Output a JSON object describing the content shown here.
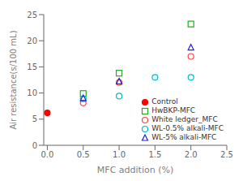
{
  "chart_data": {
    "type": "scatter",
    "xlabel": "MFC addition (%)",
    "ylabel": "Air resistance(s/100 mL)",
    "xlim": [
      -0.05,
      2.5
    ],
    "ylim": [
      0,
      25
    ],
    "xticks": [
      {
        "value": 0,
        "label": "0.0"
      },
      0.5,
      {
        "value": 1,
        "label": "1.0"
      },
      1.5,
      {
        "value": 2,
        "label": "2.0"
      },
      2.5
    ],
    "yticks": [
      0,
      5,
      10,
      15,
      20,
      25
    ],
    "grid": false,
    "legend": "lower right",
    "series": [
      {
        "name": "Control",
        "x": [
          0.0
        ],
        "values": [
          6.2
        ],
        "color": "#ff0000",
        "marker": "filled_circle"
      },
      {
        "name": "HwBKP-MFC",
        "x": [
          0.5,
          1.0,
          2.0
        ],
        "values": [
          9.9,
          13.8,
          23.2
        ],
        "color": "#22aa22",
        "marker": "open_square"
      },
      {
        "name": "White ledger_MFC",
        "x": [
          0.5,
          1.0,
          2.0
        ],
        "values": [
          8.1,
          12.0,
          17.0
        ],
        "color": "#ff4444",
        "marker": "open_circle"
      },
      {
        "name": "WL-0.5% alkali-MFC",
        "x": [
          0.5,
          1.0,
          1.5,
          2.0
        ],
        "values": [
          8.9,
          9.4,
          13.0,
          13.0
        ],
        "color": "#00bbcc",
        "marker": "open_circle"
      },
      {
        "name": "WL-5% alkali-MFC",
        "x": [
          0.5,
          1.0,
          2.0
        ],
        "values": [
          9.0,
          12.2,
          18.7
        ],
        "color": "#2222cc",
        "marker": "open_triangle"
      }
    ]
  }
}
